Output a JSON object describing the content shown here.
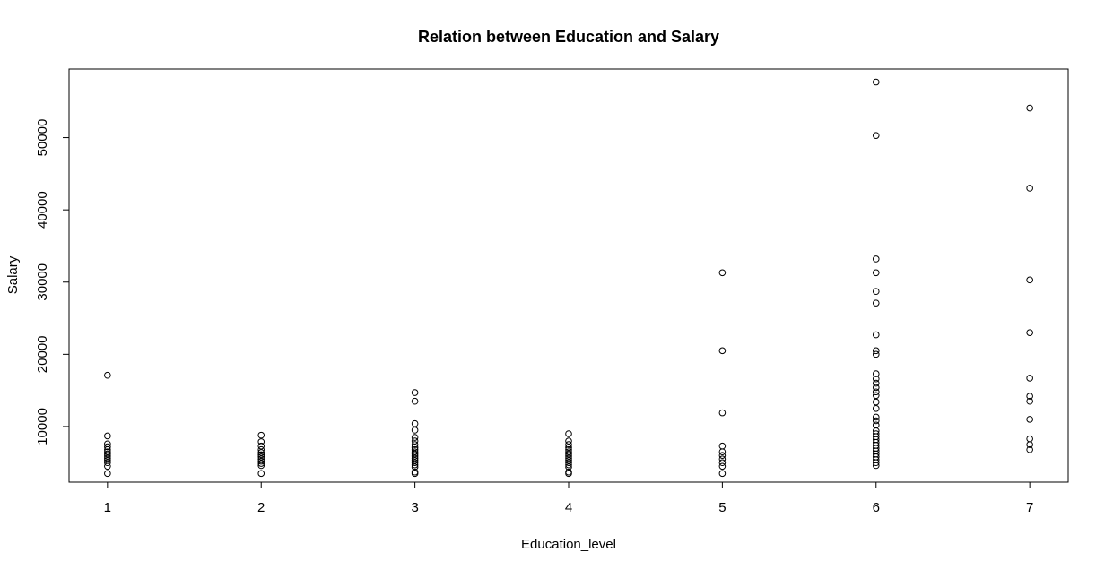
{
  "chart_data": {
    "type": "scatter",
    "title": "Relation between Education and Salary",
    "xlabel": "Education_level",
    "ylabel": "Salary",
    "xlim": [
      0.75,
      7.25
    ],
    "ylim": [
      2300,
      59500
    ],
    "x_ticks": [
      1,
      2,
      3,
      4,
      5,
      6,
      7
    ],
    "x_tick_labels": [
      "1",
      "2",
      "3",
      "4",
      "5",
      "6",
      "7"
    ],
    "y_ticks": [
      10000,
      20000,
      30000,
      40000,
      50000
    ],
    "y_tick_labels": [
      "10000",
      "20000",
      "30000",
      "40000",
      "50000"
    ],
    "grid": false,
    "legend": "none",
    "series": [
      {
        "points": [
          {
            "x": 1,
            "y": 3500
          },
          {
            "x": 1,
            "y": 4500
          },
          {
            "x": 1,
            "y": 5000
          },
          {
            "x": 1,
            "y": 5300
          },
          {
            "x": 1,
            "y": 5600
          },
          {
            "x": 1,
            "y": 5900
          },
          {
            "x": 1,
            "y": 6200
          },
          {
            "x": 1,
            "y": 6500
          },
          {
            "x": 1,
            "y": 6800
          },
          {
            "x": 1,
            "y": 7200
          },
          {
            "x": 1,
            "y": 7600
          },
          {
            "x": 1,
            "y": 8700
          },
          {
            "x": 1,
            "y": 17100
          },
          {
            "x": 2,
            "y": 3500
          },
          {
            "x": 2,
            "y": 4600
          },
          {
            "x": 2,
            "y": 4900
          },
          {
            "x": 2,
            "y": 5200
          },
          {
            "x": 2,
            "y": 5500
          },
          {
            "x": 2,
            "y": 5800
          },
          {
            "x": 2,
            "y": 6100
          },
          {
            "x": 2,
            "y": 6400
          },
          {
            "x": 2,
            "y": 6800
          },
          {
            "x": 2,
            "y": 7300
          },
          {
            "x": 2,
            "y": 7900
          },
          {
            "x": 2,
            "y": 8800
          },
          {
            "x": 3,
            "y": 3500
          },
          {
            "x": 3,
            "y": 3700
          },
          {
            "x": 3,
            "y": 4400
          },
          {
            "x": 3,
            "y": 4700
          },
          {
            "x": 3,
            "y": 5000
          },
          {
            "x": 3,
            "y": 5300
          },
          {
            "x": 3,
            "y": 5600
          },
          {
            "x": 3,
            "y": 5900
          },
          {
            "x": 3,
            "y": 6200
          },
          {
            "x": 3,
            "y": 6500
          },
          {
            "x": 3,
            "y": 6800
          },
          {
            "x": 3,
            "y": 7100
          },
          {
            "x": 3,
            "y": 7500
          },
          {
            "x": 3,
            "y": 8000
          },
          {
            "x": 3,
            "y": 8500
          },
          {
            "x": 3,
            "y": 9500
          },
          {
            "x": 3,
            "y": 10400
          },
          {
            "x": 3,
            "y": 13500
          },
          {
            "x": 3,
            "y": 14700
          },
          {
            "x": 4,
            "y": 3500
          },
          {
            "x": 4,
            "y": 3700
          },
          {
            "x": 4,
            "y": 4400
          },
          {
            "x": 4,
            "y": 4700
          },
          {
            "x": 4,
            "y": 5000
          },
          {
            "x": 4,
            "y": 5300
          },
          {
            "x": 4,
            "y": 5600
          },
          {
            "x": 4,
            "y": 5900
          },
          {
            "x": 4,
            "y": 6200
          },
          {
            "x": 4,
            "y": 6500
          },
          {
            "x": 4,
            "y": 6800
          },
          {
            "x": 4,
            "y": 7100
          },
          {
            "x": 4,
            "y": 7500
          },
          {
            "x": 4,
            "y": 8000
          },
          {
            "x": 4,
            "y": 9000
          },
          {
            "x": 5,
            "y": 3500
          },
          {
            "x": 5,
            "y": 4500
          },
          {
            "x": 5,
            "y": 5000
          },
          {
            "x": 5,
            "y": 5500
          },
          {
            "x": 5,
            "y": 6000
          },
          {
            "x": 5,
            "y": 6500
          },
          {
            "x": 5,
            "y": 7300
          },
          {
            "x": 5,
            "y": 11900
          },
          {
            "x": 5,
            "y": 20500
          },
          {
            "x": 5,
            "y": 31300
          },
          {
            "x": 6,
            "y": 4600
          },
          {
            "x": 6,
            "y": 5000
          },
          {
            "x": 6,
            "y": 5400
          },
          {
            "x": 6,
            "y": 5800
          },
          {
            "x": 6,
            "y": 6200
          },
          {
            "x": 6,
            "y": 6600
          },
          {
            "x": 6,
            "y": 7000
          },
          {
            "x": 6,
            "y": 7400
          },
          {
            "x": 6,
            "y": 7800
          },
          {
            "x": 6,
            "y": 8200
          },
          {
            "x": 6,
            "y": 8600
          },
          {
            "x": 6,
            "y": 9000
          },
          {
            "x": 6,
            "y": 9400
          },
          {
            "x": 6,
            "y": 10200
          },
          {
            "x": 6,
            "y": 10800
          },
          {
            "x": 6,
            "y": 11300
          },
          {
            "x": 6,
            "y": 12500
          },
          {
            "x": 6,
            "y": 13400
          },
          {
            "x": 6,
            "y": 14300
          },
          {
            "x": 6,
            "y": 14800
          },
          {
            "x": 6,
            "y": 15400
          },
          {
            "x": 6,
            "y": 16000
          },
          {
            "x": 6,
            "y": 16600
          },
          {
            "x": 6,
            "y": 17300
          },
          {
            "x": 6,
            "y": 20000
          },
          {
            "x": 6,
            "y": 20500
          },
          {
            "x": 6,
            "y": 22700
          },
          {
            "x": 6,
            "y": 27100
          },
          {
            "x": 6,
            "y": 28700
          },
          {
            "x": 6,
            "y": 31300
          },
          {
            "x": 6,
            "y": 33200
          },
          {
            "x": 6,
            "y": 50300
          },
          {
            "x": 6,
            "y": 57700
          },
          {
            "x": 7,
            "y": 6800
          },
          {
            "x": 7,
            "y": 7500
          },
          {
            "x": 7,
            "y": 8300
          },
          {
            "x": 7,
            "y": 11000
          },
          {
            "x": 7,
            "y": 13500
          },
          {
            "x": 7,
            "y": 14200
          },
          {
            "x": 7,
            "y": 16700
          },
          {
            "x": 7,
            "y": 23000
          },
          {
            "x": 7,
            "y": 30300
          },
          {
            "x": 7,
            "y": 43000
          },
          {
            "x": 7,
            "y": 54100
          }
        ]
      }
    ]
  }
}
